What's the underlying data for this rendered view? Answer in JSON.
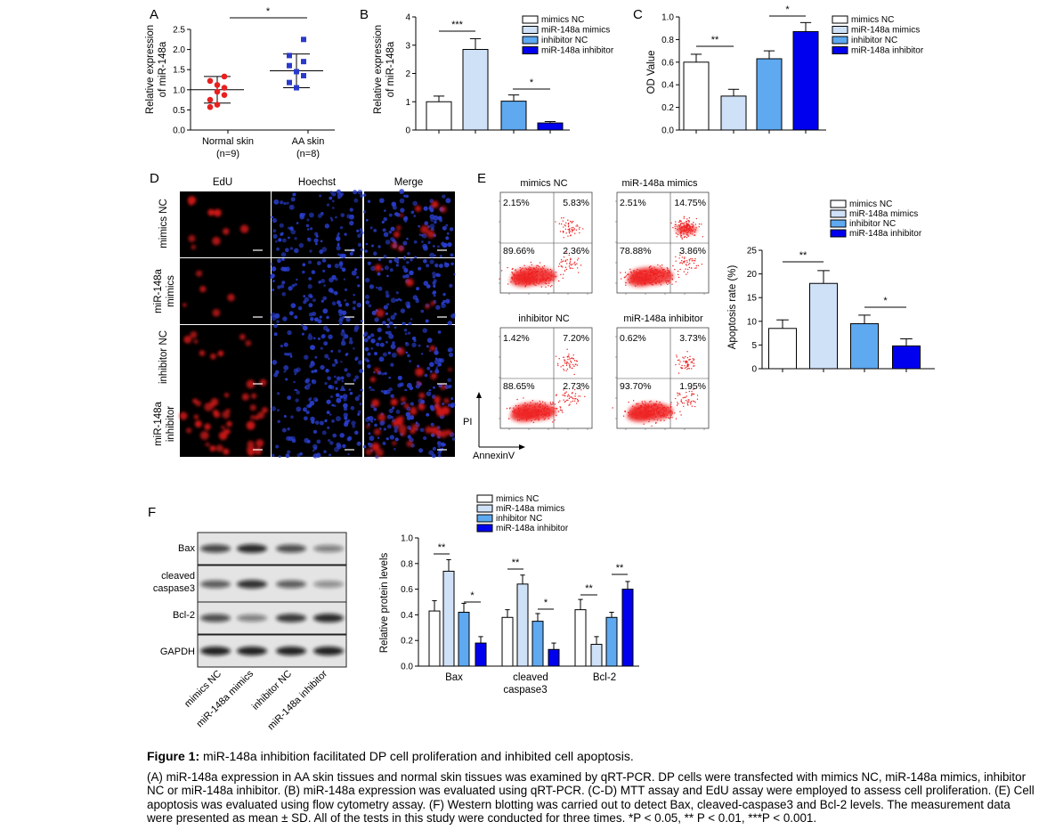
{
  "colors": {
    "mimics_nc": "#ffffff",
    "mir148a_mimics": "#cfe1f7",
    "inhibitor_nc": "#5ea9f0",
    "mir148a_inhibitor": "#0000ee",
    "normal": "#e82020",
    "aa": "#2a3acc",
    "flow_dots": "#ee2020",
    "hoechst": "#2a3fd0"
  },
  "legend": [
    "mimics NC",
    "miR-148a mimics",
    "inhibitor NC",
    "miR-148a inhibitor"
  ],
  "panels": {
    "A": {
      "letter": "A",
      "ylabel": [
        "Relative expression",
        "of miR-148a"
      ],
      "sig": "*"
    },
    "B": {
      "letter": "B",
      "ylabel": [
        "Relative expression",
        "of miR-148a"
      ],
      "sig1": "***",
      "sig2": "*"
    },
    "C": {
      "letter": "C",
      "ylabel": "OD Value",
      "sig1": "**",
      "sig2": "*"
    },
    "D": {
      "letter": "D",
      "cols": [
        "EdU",
        "Hoechst",
        "Merge"
      ],
      "rows": [
        [
          "mimics NC"
        ],
        [
          "miR-148a",
          "mimics"
        ],
        [
          "inhibitor NC"
        ],
        [
          "miR-148a",
          "inhibitor"
        ]
      ]
    },
    "E": {
      "letter": "E",
      "flow_titles": [
        "mimics NC",
        "miR-148a mimics",
        "inhibitor NC",
        "miR-148a inhibitor"
      ],
      "quadrants": [
        [
          "2.15%",
          "5.83%",
          "89.66%",
          "2.36%"
        ],
        [
          "2.51%",
          "14.75%",
          "78.88%",
          "3.86%"
        ],
        [
          "1.42%",
          "7.20%",
          "88.65%",
          "2.73%"
        ],
        [
          "0.62%",
          "3.73%",
          "93.70%",
          "1.95%"
        ]
      ],
      "pi_label": "PI",
      "annexin_label": "AnnexinV",
      "ylabel": "Apoptosis rate (%)",
      "sig1": "**",
      "sig2": "*"
    },
    "F": {
      "letter": "F",
      "blots": [
        "Bax",
        [
          "cleaved",
          "caspase3"
        ],
        "Bcl-2",
        "GAPDH"
      ],
      "lanes": [
        "mimics NC",
        "miR-148a mimics",
        "inhibitor NC",
        "miR-148a inhibitor"
      ],
      "ylabel": "Relative protein levels",
      "groups": [
        "Bax",
        [
          "cleaved",
          "caspase3"
        ],
        "Bcl-2"
      ],
      "sigs": [
        "**",
        "*",
        "**",
        "*",
        "**",
        "**"
      ]
    }
  },
  "chart_data": [
    {
      "type": "scatter",
      "panel": "A",
      "categories": [
        "Normal skin\n(n=9)",
        "AA skin\n(n=8)"
      ],
      "ylabel": "Relative expression of miR-148a",
      "ylim": [
        0,
        2.5
      ],
      "yticks": [
        0.0,
        0.5,
        1.0,
        1.5,
        2.0,
        2.5
      ],
      "series": [
        {
          "name": "Normal skin",
          "values": [
            0.57,
            0.63,
            0.75,
            0.87,
            0.95,
            1.05,
            1.12,
            1.22,
            1.33
          ],
          "mean": 1.0,
          "sd": 0.33
        },
        {
          "name": "AA skin",
          "values": [
            1.05,
            1.18,
            1.35,
            1.45,
            1.6,
            1.7,
            1.85,
            2.25
          ],
          "mean": 1.47,
          "sd": 0.42
        }
      ]
    },
    {
      "type": "bar",
      "panel": "B",
      "categories": [
        "mimics NC",
        "miR-148a mimics",
        "inhibitor NC",
        "miR-148a inhibitor"
      ],
      "values": [
        1.0,
        2.85,
        1.02,
        0.25
      ],
      "errors": [
        0.2,
        0.38,
        0.22,
        0.05
      ],
      "ylabel": "Relative expression of miR-148a",
      "ylim": [
        0,
        4
      ],
      "yticks": [
        0,
        1,
        2,
        3,
        4
      ]
    },
    {
      "type": "bar",
      "panel": "C",
      "categories": [
        "mimics NC",
        "miR-148a mimics",
        "inhibitor NC",
        "miR-148a inhibitor"
      ],
      "values": [
        0.6,
        0.3,
        0.63,
        0.87
      ],
      "errors": [
        0.07,
        0.06,
        0.07,
        0.08
      ],
      "ylabel": "OD Value",
      "ylim": [
        0,
        1.0
      ],
      "yticks": [
        0.0,
        0.2,
        0.4,
        0.6,
        0.8,
        1.0
      ]
    },
    {
      "type": "bar",
      "panel": "E",
      "categories": [
        "mimics NC",
        "miR-148a mimics",
        "inhibitor NC",
        "miR-148a inhibitor"
      ],
      "values": [
        8.5,
        18,
        9.5,
        4.8
      ],
      "errors": [
        1.8,
        2.7,
        1.8,
        1.5
      ],
      "ylabel": "Apoptosis rate (%)",
      "ylim": [
        0,
        25
      ],
      "yticks": [
        0,
        5,
        10,
        15,
        20,
        25
      ]
    },
    {
      "type": "bar",
      "panel": "F",
      "categories": [
        "Bax",
        "cleaved caspase3",
        "Bcl-2"
      ],
      "ylabel": "Relative protein levels",
      "ylim": [
        0,
        1.0
      ],
      "yticks": [
        0.0,
        0.2,
        0.4,
        0.6,
        0.8,
        1.0
      ],
      "series": [
        {
          "name": "mimics NC",
          "values": [
            0.43,
            0.38,
            0.44
          ],
          "errors": [
            0.08,
            0.06,
            0.08
          ]
        },
        {
          "name": "miR-148a mimics",
          "values": [
            0.74,
            0.64,
            0.17
          ],
          "errors": [
            0.09,
            0.07,
            0.06
          ]
        },
        {
          "name": "inhibitor NC",
          "values": [
            0.42,
            0.35,
            0.38
          ],
          "errors": [
            0.07,
            0.06,
            0.04
          ]
        },
        {
          "name": "miR-148a inhibitor",
          "values": [
            0.18,
            0.13,
            0.6
          ],
          "errors": [
            0.05,
            0.05,
            0.06
          ]
        }
      ]
    }
  ],
  "caption": {
    "figure_label": "Figure 1:",
    "title": " miR-148a inhibition facilitated DP cell proliferation and inhibited cell apoptosis.",
    "body": "(A) miR-148a expression in AA skin tissues and normal skin tissues was examined by qRT-PCR. DP cells were transfected with mimics NC, miR-148a mimics, inhibitor NC or miR-148a inhibitor. (B) miR-148a expression was evaluated using qRT-PCR. (C-D) MTT assay and EdU assay were employed to assess cell proliferation. (E) Cell apoptosis was evaluated using flow cytometry assay. (F) Western blotting was carried out to detect Bax, cleaved-caspase3 and Bcl-2 levels. The measurement data were presented as mean ± SD. All of the tests in this study were conducted for three times. *P < 0.05, ** P < 0.01, ***P < 0.001."
  }
}
